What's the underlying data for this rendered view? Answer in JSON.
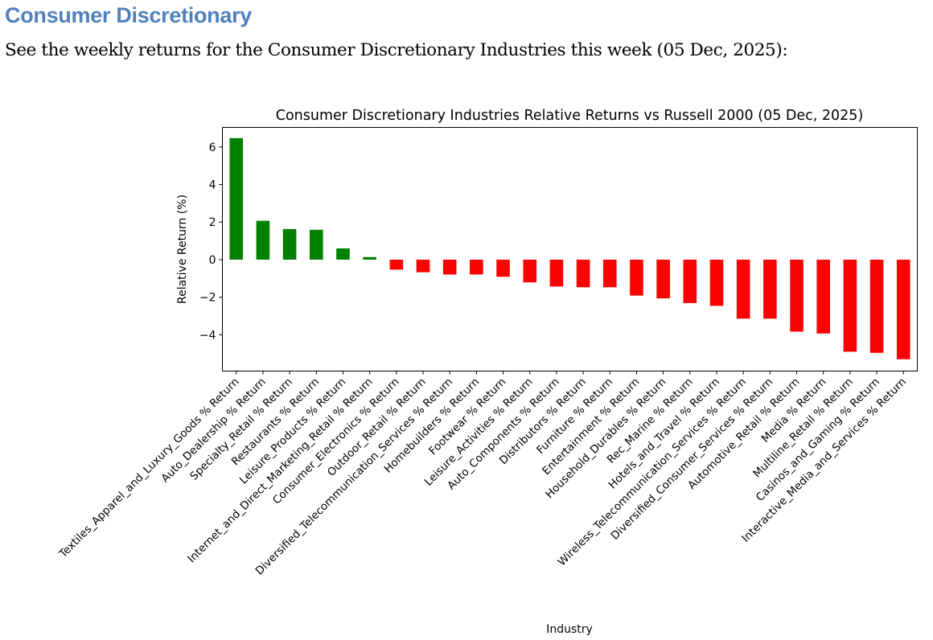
{
  "heading": "Consumer Discretionary",
  "intro": "See the weekly returns for the Consumer Discretionary Industries this week (05 Dec, 2025):",
  "colors": {
    "heading": "#4f81bd",
    "positive": "#008000",
    "negative": "#ff0000"
  },
  "chart_data": {
    "type": "bar",
    "title": "Consumer Discretionary Industries Relative Returns vs Russell 2000 (05 Dec, 2025)",
    "xlabel": "Industry",
    "ylabel": "Relative Return (%)",
    "ylim": [
      -5.93,
      7.04
    ],
    "yticks": [
      -4,
      -2,
      0,
      2,
      4,
      6
    ],
    "ytick_labels": [
      "−4",
      "−2",
      "0",
      "2",
      "4",
      "6"
    ],
    "grid": false,
    "categories": [
      "Textiles_Apparel_and_Luxury_Goods % Return",
      "Auto_Dealership % Return",
      "Specialty_Retail % Return",
      "Restaurants % Return",
      "Leisure_Products % Return",
      "Internet_and_Direct_Marketing_Retail % Return",
      "Consumer_Electronics % Return",
      "Outdoor_Retail % Return",
      "Diversified_Telecommunication_Services % Return",
      "Homebuilders % Return",
      "Footwear % Return",
      "Leisure_Activities % Return",
      "Auto_Components % Return",
      "Distributors % Return",
      "Furniture % Return",
      "Entertainment % Return",
      "Household_Durables % Return",
      "Rec_Marine % Return",
      "Hotels_and_Travel % Return",
      "Wireless_Telecommunication_Services % Return",
      "Diversified_Consumer_Services % Return",
      "Automotive_Retail % Return",
      "Media % Return",
      "Multiline_Retail % Return",
      "Casinos_and_Gaming % Return",
      "Interactive_Media_and_Services % Return"
    ],
    "values": [
      6.47,
      2.07,
      1.63,
      1.59,
      0.6,
      0.14,
      -0.53,
      -0.67,
      -0.79,
      -0.79,
      -0.91,
      -1.21,
      -1.43,
      -1.47,
      -1.47,
      -1.91,
      -2.06,
      -2.31,
      -2.46,
      -3.14,
      -3.14,
      -3.83,
      -3.93,
      -4.9,
      -4.96,
      -5.3
    ]
  }
}
